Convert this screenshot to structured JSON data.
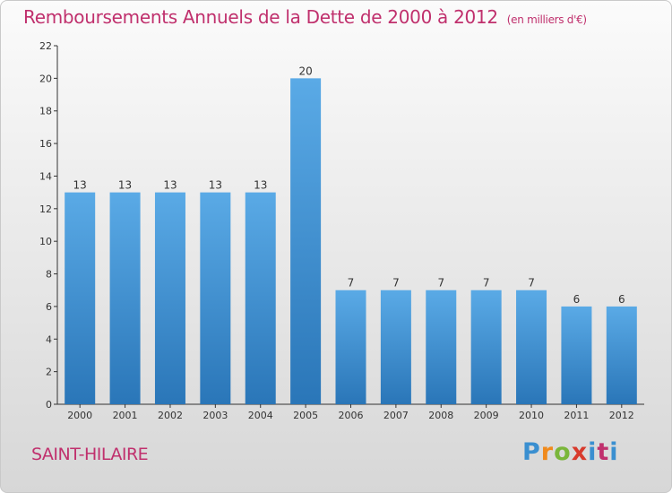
{
  "chart_data": {
    "type": "bar",
    "title": "Remboursements Annuels de la Dette de 2000 à 2012",
    "unit_label": "(en milliers d'€)",
    "categories": [
      "2000",
      "2001",
      "2002",
      "2003",
      "2004",
      "2005",
      "2006",
      "2007",
      "2008",
      "2009",
      "2010",
      "2011",
      "2012"
    ],
    "values": [
      13,
      13,
      13,
      13,
      13,
      20,
      7,
      7,
      7,
      7,
      7,
      6,
      6
    ],
    "data_labels": [
      "13",
      "13",
      "13",
      "13",
      "13",
      "20",
      "7",
      "7",
      "7",
      "7",
      "7",
      "6",
      "6"
    ],
    "ylim": [
      0,
      22
    ],
    "yticks": [
      0,
      2,
      4,
      6,
      8,
      10,
      12,
      14,
      16,
      18,
      20,
      22
    ],
    "grid": false,
    "bar_color_top": "#5aaae6",
    "bar_color_bottom": "#2a76b8"
  },
  "commune": "SAINT-HILAIRE",
  "logo": {
    "text": "Proxiti",
    "colors": [
      "#3a8fd0",
      "#f08a1c",
      "#7ab63a",
      "#d83a2c",
      "#3a8fd0",
      "#c0306d"
    ]
  },
  "title_color": "#c0306d"
}
